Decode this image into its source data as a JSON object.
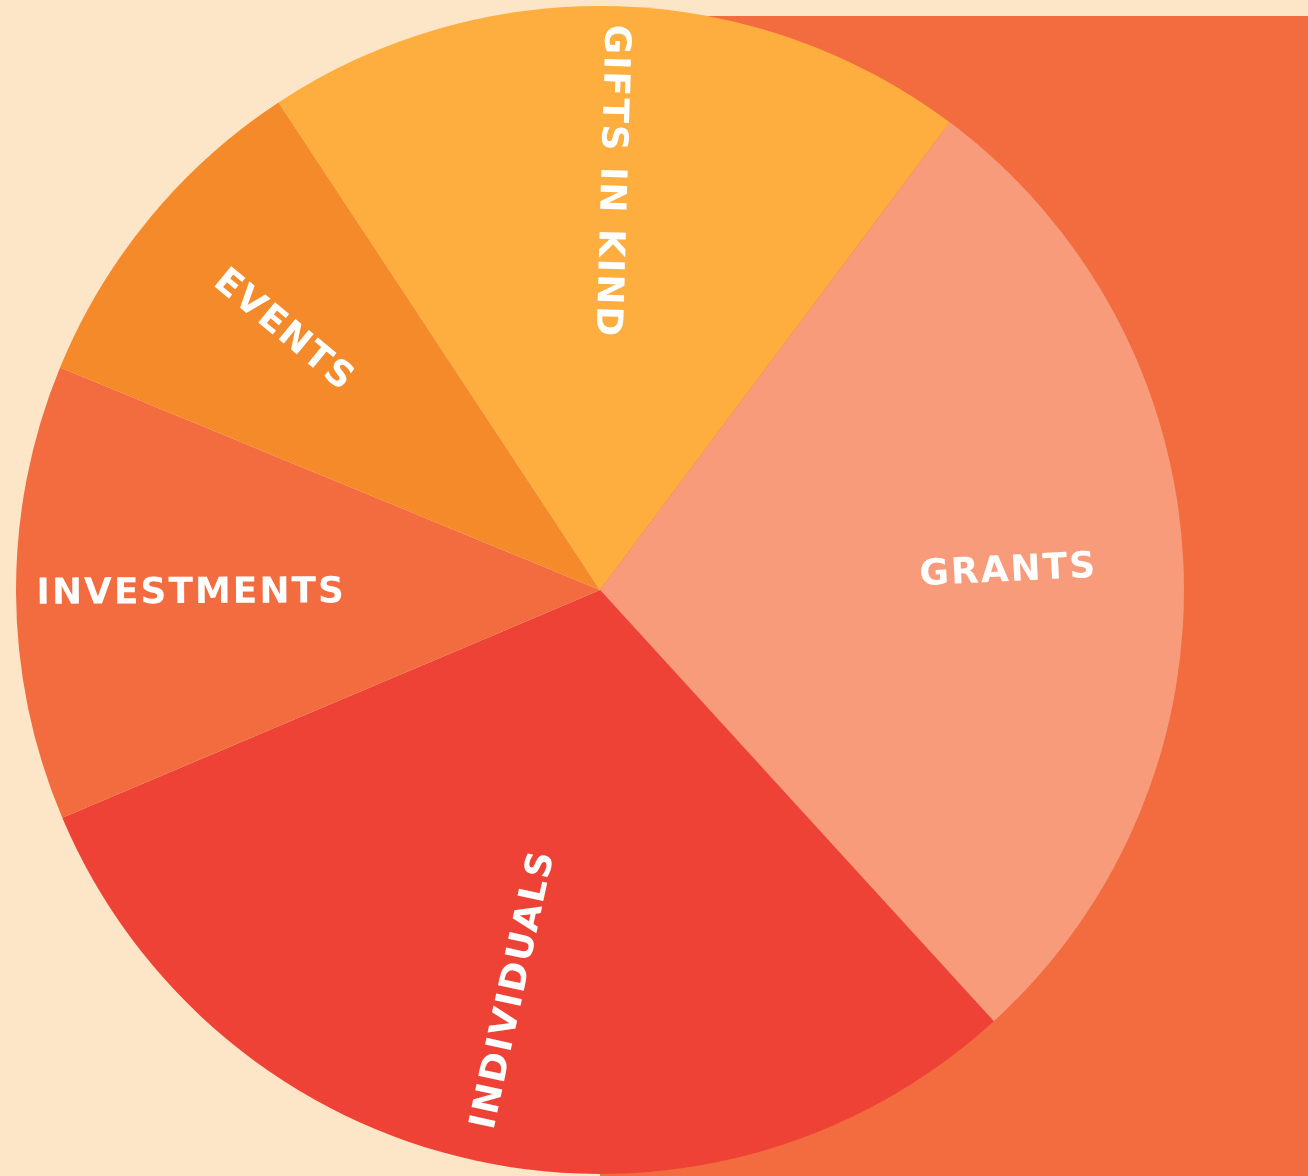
{
  "chart_data": {
    "type": "pie",
    "categories": [
      "GIFTS IN KIND",
      "GRANTS",
      "INDIVIDUALS",
      "INVESTMENTS",
      "EVENTS"
    ],
    "values": [
      19.5,
      28,
      30.4,
      12.6,
      9.5
    ],
    "colors": [
      "#fdae3e",
      "#f79b7b",
      "#ef4236",
      "#f26c40",
      "#f58a2a"
    ]
  }
}
